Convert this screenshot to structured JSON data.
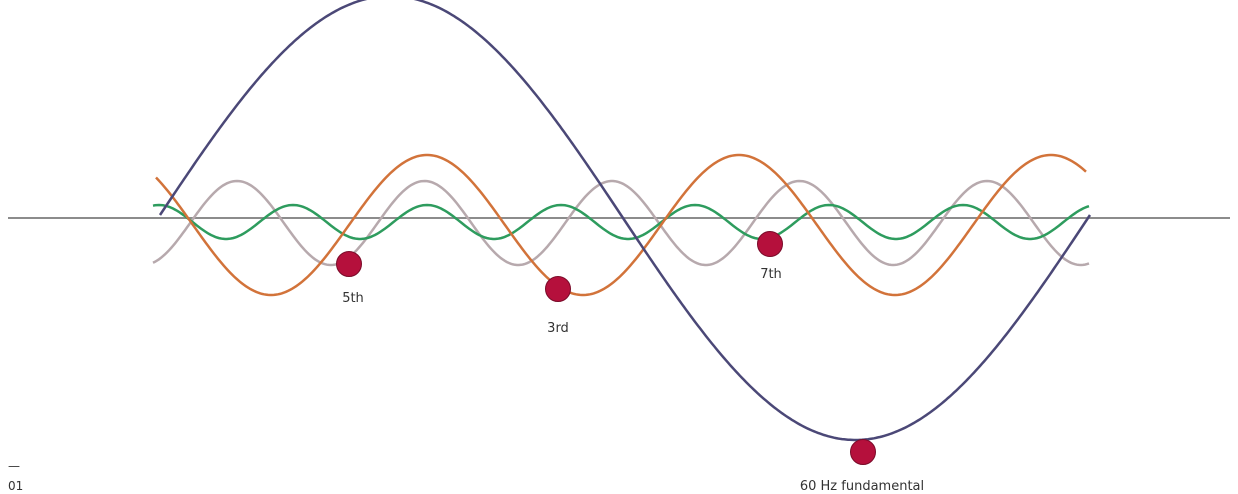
{
  "figure": {
    "number": "01",
    "dash": "—"
  },
  "waves": [
    {
      "name": "fundamental-wave",
      "color": "#4b4877"
    },
    {
      "name": "third-harmonic-wave",
      "color": "#d2733a"
    },
    {
      "name": "fifth-harmonic-wave",
      "color": "#b7a9ad"
    },
    {
      "name": "seventh-harmonic-wave",
      "color": "#2e9c5e"
    }
  ],
  "axis_color": "#8c8c8c",
  "marker_color": "#b5103c",
  "markers": [
    {
      "name": "fifth-harmonic-marker",
      "label": "5th"
    },
    {
      "name": "third-harmonic-marker",
      "label": "3rd"
    },
    {
      "name": "seventh-harmonic-marker",
      "label": "7th"
    },
    {
      "name": "fundamental-marker",
      "label": "60 Hz fundamental"
    }
  ]
}
